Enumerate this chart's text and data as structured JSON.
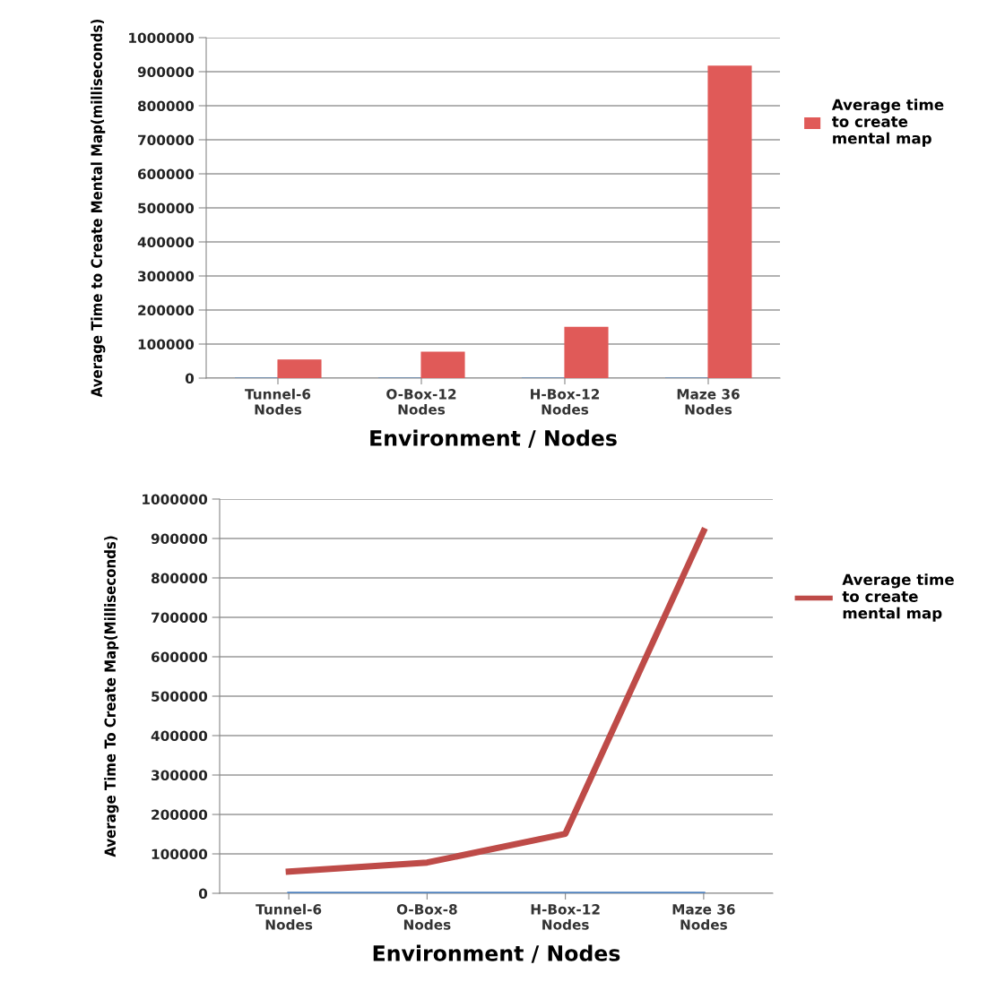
{
  "chart_data": [
    {
      "type": "bar",
      "xlabel": "Environment / Nodes",
      "ylabel": "Average Time to Create Mental Map(milliseconds)",
      "categories": [
        "Tunnel-6\nNodes",
        "O-Box-12\nNodes",
        "H-Box-12\nNodes",
        "Maze 36\nNodes"
      ],
      "series": [
        {
          "color": "#4f81bd",
          "values": [
            0,
            0,
            0,
            0
          ]
        },
        {
          "name": "Average time to create mental map",
          "color": "#e05a58",
          "values": [
            53000,
            76000,
            149000,
            916000
          ]
        }
      ],
      "ylim": [
        0,
        1000000
      ],
      "yticks": [
        0,
        100000,
        200000,
        300000,
        400000,
        500000,
        600000,
        700000,
        800000,
        900000,
        1000000
      ],
      "grid": "y",
      "legend": "right"
    },
    {
      "type": "line",
      "xlabel": "Environment / Nodes",
      "ylabel": "Average Time To Create Map(Milliseconds)",
      "categories": [
        "Tunnel-6\nNodes",
        "O-Box-8\nNodes",
        "H-Box-12\nNodes",
        "Maze 36\nNodes"
      ],
      "series": [
        {
          "color": "#4f81bd",
          "values": [
            0,
            0,
            0,
            0
          ]
        },
        {
          "name": "Average time to create mental map",
          "color": "#be4b48",
          "values": [
            55000,
            78000,
            151000,
            919000
          ]
        }
      ],
      "ylim": [
        0,
        1000000
      ],
      "yticks": [
        0,
        100000,
        200000,
        300000,
        400000,
        500000,
        600000,
        700000,
        800000,
        900000,
        1000000
      ],
      "grid": "y",
      "legend": "right",
      "marker": "none"
    }
  ]
}
